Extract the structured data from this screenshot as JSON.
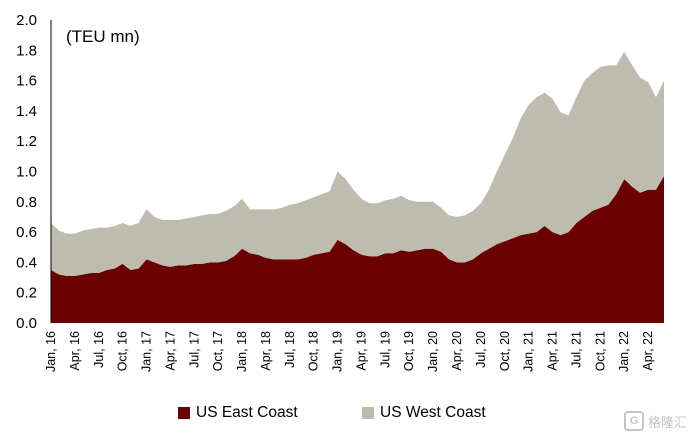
{
  "chart_data": {
    "type": "area",
    "stacked": true,
    "unit_label": "(TEU mn)",
    "ylim": [
      0,
      2.0
    ],
    "y_ticks": [
      "0.0",
      "0.2",
      "0.4",
      "0.6",
      "0.8",
      "1.0",
      "1.2",
      "1.4",
      "1.6",
      "1.8",
      "2.0"
    ],
    "x_ticks": [
      "Jan, 16",
      "Apr, 16",
      "Jul, 16",
      "Oct, 16",
      "Jan, 17",
      "Apr, 17",
      "Jul, 17",
      "Oct, 17",
      "Jan, 18",
      "Apr, 18",
      "Jul, 18",
      "Oct, 18",
      "Jan, 19",
      "Apr, 19",
      "Jul, 19",
      "Oct, 19",
      "Jan, 20",
      "Apr, 20",
      "Jul, 20",
      "Oct, 20",
      "Jan, 21",
      "Apr, 21",
      "Jul, 21",
      "Oct, 21",
      "Jan, 22",
      "Apr, 22"
    ],
    "x": [
      "2016-01",
      "2016-02",
      "2016-03",
      "2016-04",
      "2016-05",
      "2016-06",
      "2016-07",
      "2016-08",
      "2016-09",
      "2016-10",
      "2016-11",
      "2016-12",
      "2017-01",
      "2017-02",
      "2017-03",
      "2017-04",
      "2017-05",
      "2017-06",
      "2017-07",
      "2017-08",
      "2017-09",
      "2017-10",
      "2017-11",
      "2017-12",
      "2018-01",
      "2018-02",
      "2018-03",
      "2018-04",
      "2018-05",
      "2018-06",
      "2018-07",
      "2018-08",
      "2018-09",
      "2018-10",
      "2018-11",
      "2018-12",
      "2019-01",
      "2019-02",
      "2019-03",
      "2019-04",
      "2019-05",
      "2019-06",
      "2019-07",
      "2019-08",
      "2019-09",
      "2019-10",
      "2019-11",
      "2019-12",
      "2020-01",
      "2020-02",
      "2020-03",
      "2020-04",
      "2020-05",
      "2020-06",
      "2020-07",
      "2020-08",
      "2020-09",
      "2020-10",
      "2020-11",
      "2020-12",
      "2021-01",
      "2021-02",
      "2021-03",
      "2021-04",
      "2021-05",
      "2021-06",
      "2021-07",
      "2021-08",
      "2021-09",
      "2021-10",
      "2021-11",
      "2021-12",
      "2022-01",
      "2022-02",
      "2022-03",
      "2022-04",
      "2022-05",
      "2022-06"
    ],
    "series": [
      {
        "name": "US East Coast",
        "color": "#6b0000",
        "values": [
          0.35,
          0.32,
          0.31,
          0.31,
          0.32,
          0.33,
          0.33,
          0.35,
          0.36,
          0.39,
          0.35,
          0.36,
          0.42,
          0.4,
          0.38,
          0.37,
          0.38,
          0.38,
          0.39,
          0.39,
          0.4,
          0.4,
          0.41,
          0.44,
          0.49,
          0.46,
          0.45,
          0.43,
          0.42,
          0.42,
          0.42,
          0.42,
          0.43,
          0.45,
          0.46,
          0.47,
          0.55,
          0.52,
          0.48,
          0.45,
          0.44,
          0.44,
          0.46,
          0.46,
          0.48,
          0.47,
          0.48,
          0.49,
          0.49,
          0.47,
          0.42,
          0.4,
          0.4,
          0.42,
          0.46,
          0.49,
          0.52,
          0.54,
          0.56,
          0.58,
          0.59,
          0.6,
          0.64,
          0.6,
          0.58,
          0.6,
          0.66,
          0.7,
          0.74,
          0.76,
          0.78,
          0.85,
          0.95,
          0.9,
          0.86,
          0.88,
          0.88,
          0.97
        ]
      },
      {
        "name": "US West Coast",
        "color": "#bdbcae",
        "values": [
          0.31,
          0.29,
          0.28,
          0.28,
          0.29,
          0.29,
          0.3,
          0.28,
          0.28,
          0.27,
          0.29,
          0.3,
          0.33,
          0.3,
          0.3,
          0.31,
          0.3,
          0.31,
          0.31,
          0.32,
          0.32,
          0.32,
          0.33,
          0.33,
          0.33,
          0.29,
          0.3,
          0.32,
          0.33,
          0.34,
          0.36,
          0.37,
          0.38,
          0.38,
          0.39,
          0.4,
          0.45,
          0.43,
          0.4,
          0.37,
          0.35,
          0.35,
          0.35,
          0.36,
          0.36,
          0.34,
          0.32,
          0.31,
          0.31,
          0.29,
          0.29,
          0.3,
          0.31,
          0.32,
          0.33,
          0.39,
          0.48,
          0.57,
          0.66,
          0.77,
          0.85,
          0.89,
          0.88,
          0.88,
          0.81,
          0.77,
          0.83,
          0.9,
          0.91,
          0.93,
          0.92,
          0.85,
          0.84,
          0.8,
          0.76,
          0.71,
          0.61,
          0.63
        ]
      }
    ],
    "legend_position": "bottom",
    "grid": false
  },
  "watermark": {
    "mark": "G",
    "text": "格隆汇"
  }
}
